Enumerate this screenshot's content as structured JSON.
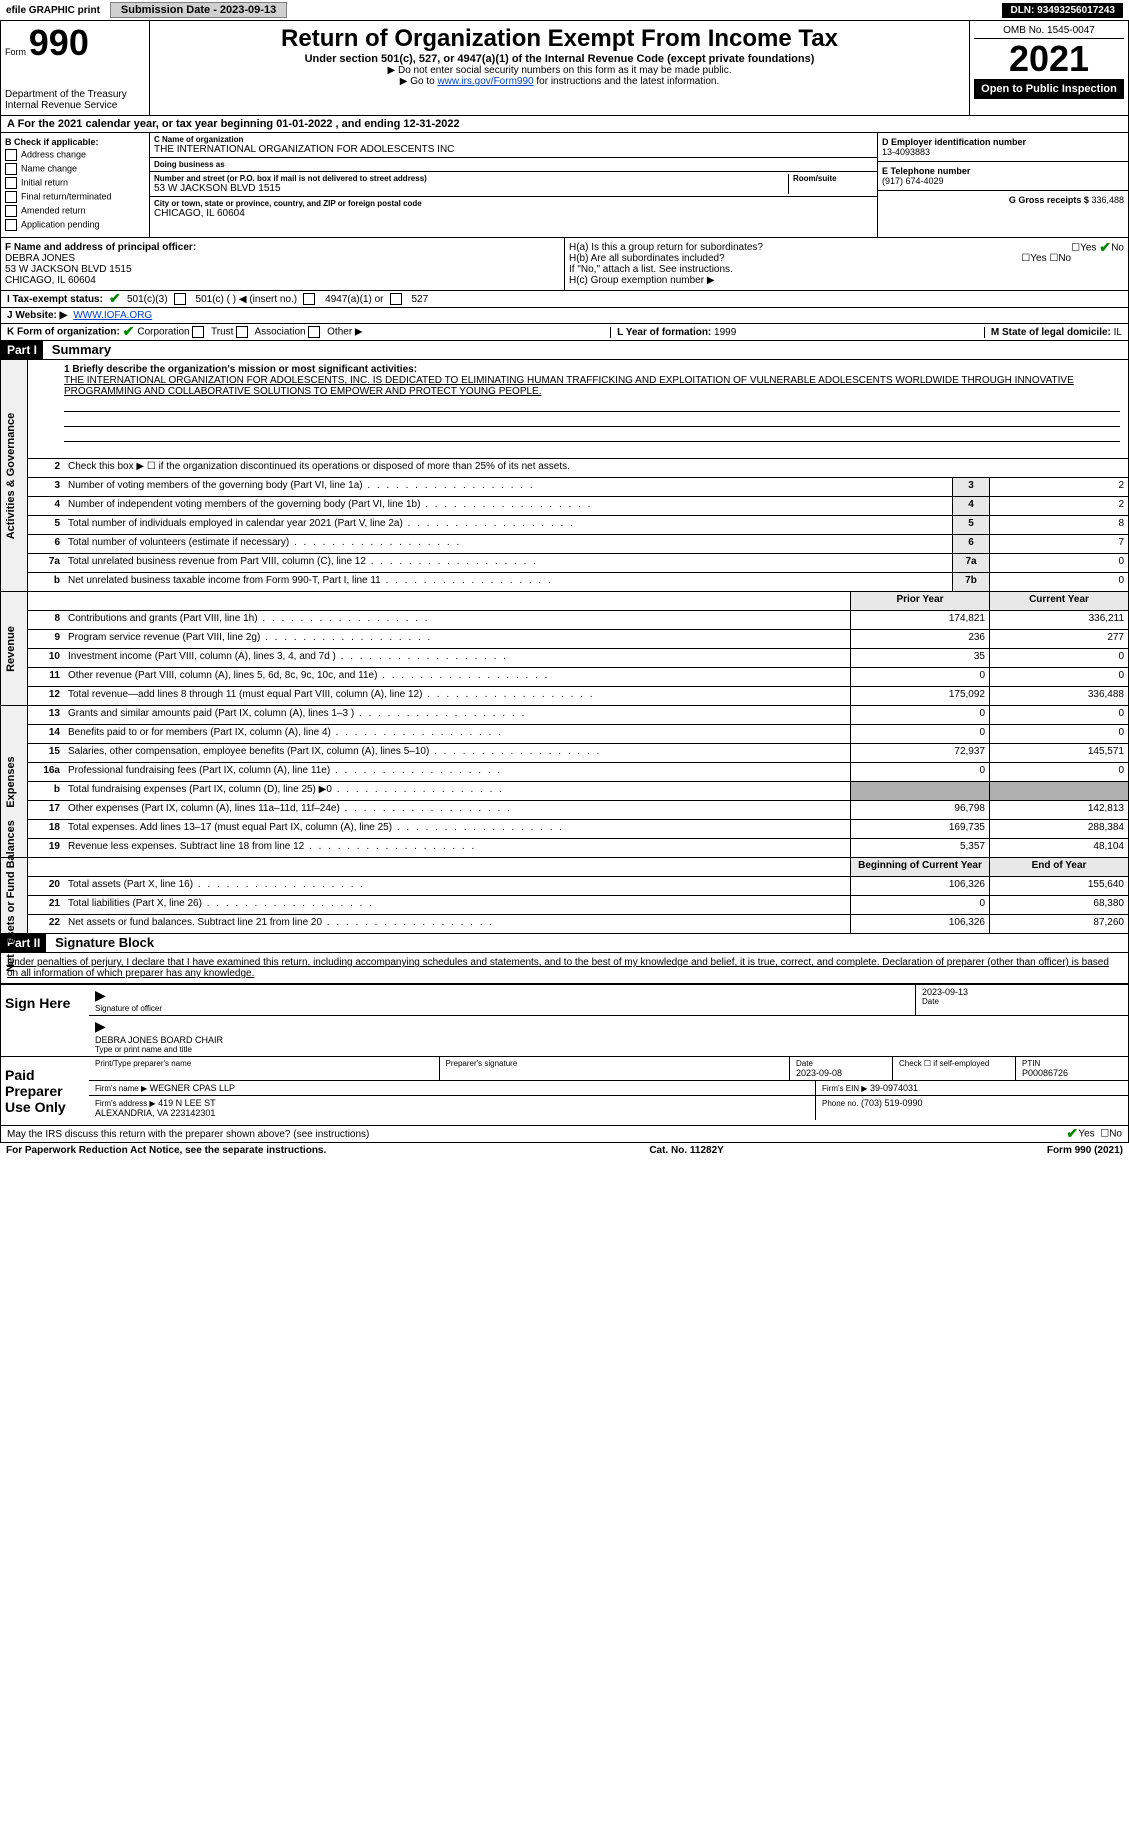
{
  "topbar": {
    "efile": "efile GRAPHIC print",
    "submission": "Submission Date - 2023-09-13",
    "dln": "DLN: 93493256017243"
  },
  "header": {
    "form_label": "Form",
    "form_no": "990",
    "title": "Return of Organization Exempt From Income Tax",
    "sub1": "Under section 501(c), 527, or 4947(a)(1) of the Internal Revenue Code (except private foundations)",
    "sub2": "▶ Do not enter social security numbers on this form as it may be made public.",
    "sub3_pre": "▶ Go to ",
    "sub3_link": "www.irs.gov/Form990",
    "sub3_post": " for instructions and the latest information.",
    "dept": "Department of the Treasury\nInternal Revenue Service",
    "omb": "OMB No. 1545-0047",
    "year": "2021",
    "open": "Open to Public Inspection"
  },
  "rowA": "A For the 2021 calendar year, or tax year beginning 01-01-2022   , and ending 12-31-2022",
  "boxB": {
    "title": "B Check if applicable:",
    "items": [
      "Address change",
      "Name change",
      "Initial return",
      "Final return/terminated",
      "Amended return",
      "Application pending"
    ]
  },
  "boxC": {
    "name_lbl": "C Name of organization",
    "name": "THE INTERNATIONAL ORGANIZATION FOR ADOLESCENTS INC",
    "dba_lbl": "Doing business as",
    "dba": "",
    "street_lbl": "Number and street (or P.O. box if mail is not delivered to street address)",
    "room_lbl": "Room/suite",
    "street": "53 W JACKSON BLVD 1515",
    "city_lbl": "City or town, state or province, country, and ZIP or foreign postal code",
    "city": "CHICAGO, IL  60604"
  },
  "boxD": {
    "lbl": "D Employer identification number",
    "val": "13-4093883"
  },
  "boxE": {
    "lbl": "E Telephone number",
    "val": "(917) 674-4029"
  },
  "boxG": {
    "lbl": "G Gross receipts $",
    "val": "336,488"
  },
  "boxF": {
    "lbl": "F Name and address of principal officer:",
    "name": "DEBRA JONES",
    "addr1": "53 W JACKSON BLVD 1515",
    "addr2": "CHICAGO, IL  60604"
  },
  "boxH": {
    "a": "H(a)  Is this a group return for subordinates?",
    "a_yes": "Yes",
    "a_no": "No",
    "b": "H(b)  Are all subordinates included?",
    "b_yes": "Yes",
    "b_no": "No",
    "b_note": "If \"No,\" attach a list. See instructions.",
    "c": "H(c)  Group exemption number ▶"
  },
  "rowI": {
    "lbl": "I  Tax-exempt status:",
    "o1": "501(c)(3)",
    "o2": "501(c) (  ) ◀ (insert no.)",
    "o3": "4947(a)(1) or",
    "o4": "527"
  },
  "rowJ": {
    "lbl": "J  Website: ▶",
    "val": "WWW.IOFA.ORG"
  },
  "rowK": {
    "lbl": "K Form of organization:",
    "opts": [
      "Corporation",
      "Trust",
      "Association",
      "Other ▶"
    ]
  },
  "rowL": {
    "lbl": "L Year of formation:",
    "val": "1999"
  },
  "rowM": {
    "lbl": "M State of legal domicile:",
    "val": "IL"
  },
  "part1": {
    "title": "Part I",
    "name": "Summary",
    "l1_lbl": "1 Briefly describe the organization's mission or most significant activities:",
    "mission": "THE INTERNATIONAL ORGANIZATION FOR ADOLESCENTS, INC. IS DEDICATED TO ELIMINATING HUMAN TRAFFICKING AND EXPLOITATION OF VULNERABLE ADOLESCENTS WORLDWIDE THROUGH INNOVATIVE PROGRAMMING AND COLLABORATIVE SOLUTIONS TO EMPOWER AND PROTECT YOUNG PEOPLE.",
    "l2": "Check this box ▶ ☐ if the organization discontinued its operations or disposed of more than 25% of its net assets.",
    "rows_single": [
      {
        "n": "3",
        "t": "Number of voting members of the governing body (Part VI, line 1a)",
        "box": "3",
        "v": "2"
      },
      {
        "n": "4",
        "t": "Number of independent voting members of the governing body (Part VI, line 1b)",
        "box": "4",
        "v": "2"
      },
      {
        "n": "5",
        "t": "Total number of individuals employed in calendar year 2021 (Part V, line 2a)",
        "box": "5",
        "v": "8"
      },
      {
        "n": "6",
        "t": "Total number of volunteers (estimate if necessary)",
        "box": "6",
        "v": "7"
      },
      {
        "n": "7a",
        "t": "Total unrelated business revenue from Part VIII, column (C), line 12",
        "box": "7a",
        "v": "0"
      },
      {
        "n": "b",
        "t": "Net unrelated business taxable income from Form 990-T, Part I, line 11",
        "box": "7b",
        "v": "0"
      }
    ],
    "col_prior": "Prior Year",
    "col_current": "Current Year",
    "rows_rev": [
      {
        "n": "8",
        "t": "Contributions and grants (Part VIII, line 1h)",
        "p": "174,821",
        "c": "336,211"
      },
      {
        "n": "9",
        "t": "Program service revenue (Part VIII, line 2g)",
        "p": "236",
        "c": "277"
      },
      {
        "n": "10",
        "t": "Investment income (Part VIII, column (A), lines 3, 4, and 7d )",
        "p": "35",
        "c": "0"
      },
      {
        "n": "11",
        "t": "Other revenue (Part VIII, column (A), lines 5, 6d, 8c, 9c, 10c, and 11e)",
        "p": "0",
        "c": "0"
      },
      {
        "n": "12",
        "t": "Total revenue—add lines 8 through 11 (must equal Part VIII, column (A), line 12)",
        "p": "175,092",
        "c": "336,488"
      }
    ],
    "rows_exp": [
      {
        "n": "13",
        "t": "Grants and similar amounts paid (Part IX, column (A), lines 1–3 )",
        "p": "0",
        "c": "0"
      },
      {
        "n": "14",
        "t": "Benefits paid to or for members (Part IX, column (A), line 4)",
        "p": "0",
        "c": "0"
      },
      {
        "n": "15",
        "t": "Salaries, other compensation, employee benefits (Part IX, column (A), lines 5–10)",
        "p": "72,937",
        "c": "145,571"
      },
      {
        "n": "16a",
        "t": "Professional fundraising fees (Part IX, column (A), line 11e)",
        "p": "0",
        "c": "0"
      },
      {
        "n": "b",
        "t": "Total fundraising expenses (Part IX, column (D), line 25) ▶0",
        "p": "",
        "c": "",
        "shade": true
      },
      {
        "n": "17",
        "t": "Other expenses (Part IX, column (A), lines 11a–11d, 11f–24e)",
        "p": "96,798",
        "c": "142,813"
      },
      {
        "n": "18",
        "t": "Total expenses. Add lines 13–17 (must equal Part IX, column (A), line 25)",
        "p": "169,735",
        "c": "288,384"
      },
      {
        "n": "19",
        "t": "Revenue less expenses. Subtract line 18 from line 12",
        "p": "5,357",
        "c": "48,104"
      }
    ],
    "col_begin": "Beginning of Current Year",
    "col_end": "End of Year",
    "rows_net": [
      {
        "n": "20",
        "t": "Total assets (Part X, line 16)",
        "p": "106,326",
        "c": "155,640"
      },
      {
        "n": "21",
        "t": "Total liabilities (Part X, line 26)",
        "p": "0",
        "c": "68,380"
      },
      {
        "n": "22",
        "t": "Net assets or fund balances. Subtract line 21 from line 20",
        "p": "106,326",
        "c": "87,260"
      }
    ],
    "vtab1": "Activities & Governance",
    "vtab2": "Revenue",
    "vtab3": "Expenses",
    "vtab4": "Net Assets or Fund Balances"
  },
  "part2": {
    "title": "Part II",
    "name": "Signature Block",
    "decl": "Under penalties of perjury, I declare that I have examined this return, including accompanying schedules and statements, and to the best of my knowledge and belief, it is true, correct, and complete. Declaration of preparer (other than officer) is based on all information of which preparer has any knowledge.",
    "sign_here": "Sign Here",
    "sig_officer_lbl": "Signature of officer",
    "sig_date": "2023-09-13",
    "date_lbl": "Date",
    "officer_name": "DEBRA JONES  BOARD CHAIR",
    "officer_name_lbl": "Type or print name and title",
    "paid": "Paid Preparer Use Only",
    "prep_name_lbl": "Print/Type preparer's name",
    "prep_sig_lbl": "Preparer's signature",
    "prep_date_lbl": "Date",
    "prep_date": "2023-09-08",
    "check_self": "Check ☐ if self-employed",
    "ptin_lbl": "PTIN",
    "ptin": "P00086726",
    "firm_name_lbl": "Firm's name   ▶",
    "firm_name": "WEGNER CPAS LLP",
    "firm_ein_lbl": "Firm's EIN ▶",
    "firm_ein": "39-0974031",
    "firm_addr_lbl": "Firm's address ▶",
    "firm_addr": "419 N LEE ST\nALEXANDRIA, VA  223142301",
    "phone_lbl": "Phone no.",
    "phone": "(703) 519-0990",
    "may_irs": "May the IRS discuss this return with the preparer shown above? (see instructions)",
    "yes": "Yes",
    "no": "No"
  },
  "footer": {
    "l": "For Paperwork Reduction Act Notice, see the separate instructions.",
    "m": "Cat. No. 11282Y",
    "r": "Form 990 (2021)"
  }
}
